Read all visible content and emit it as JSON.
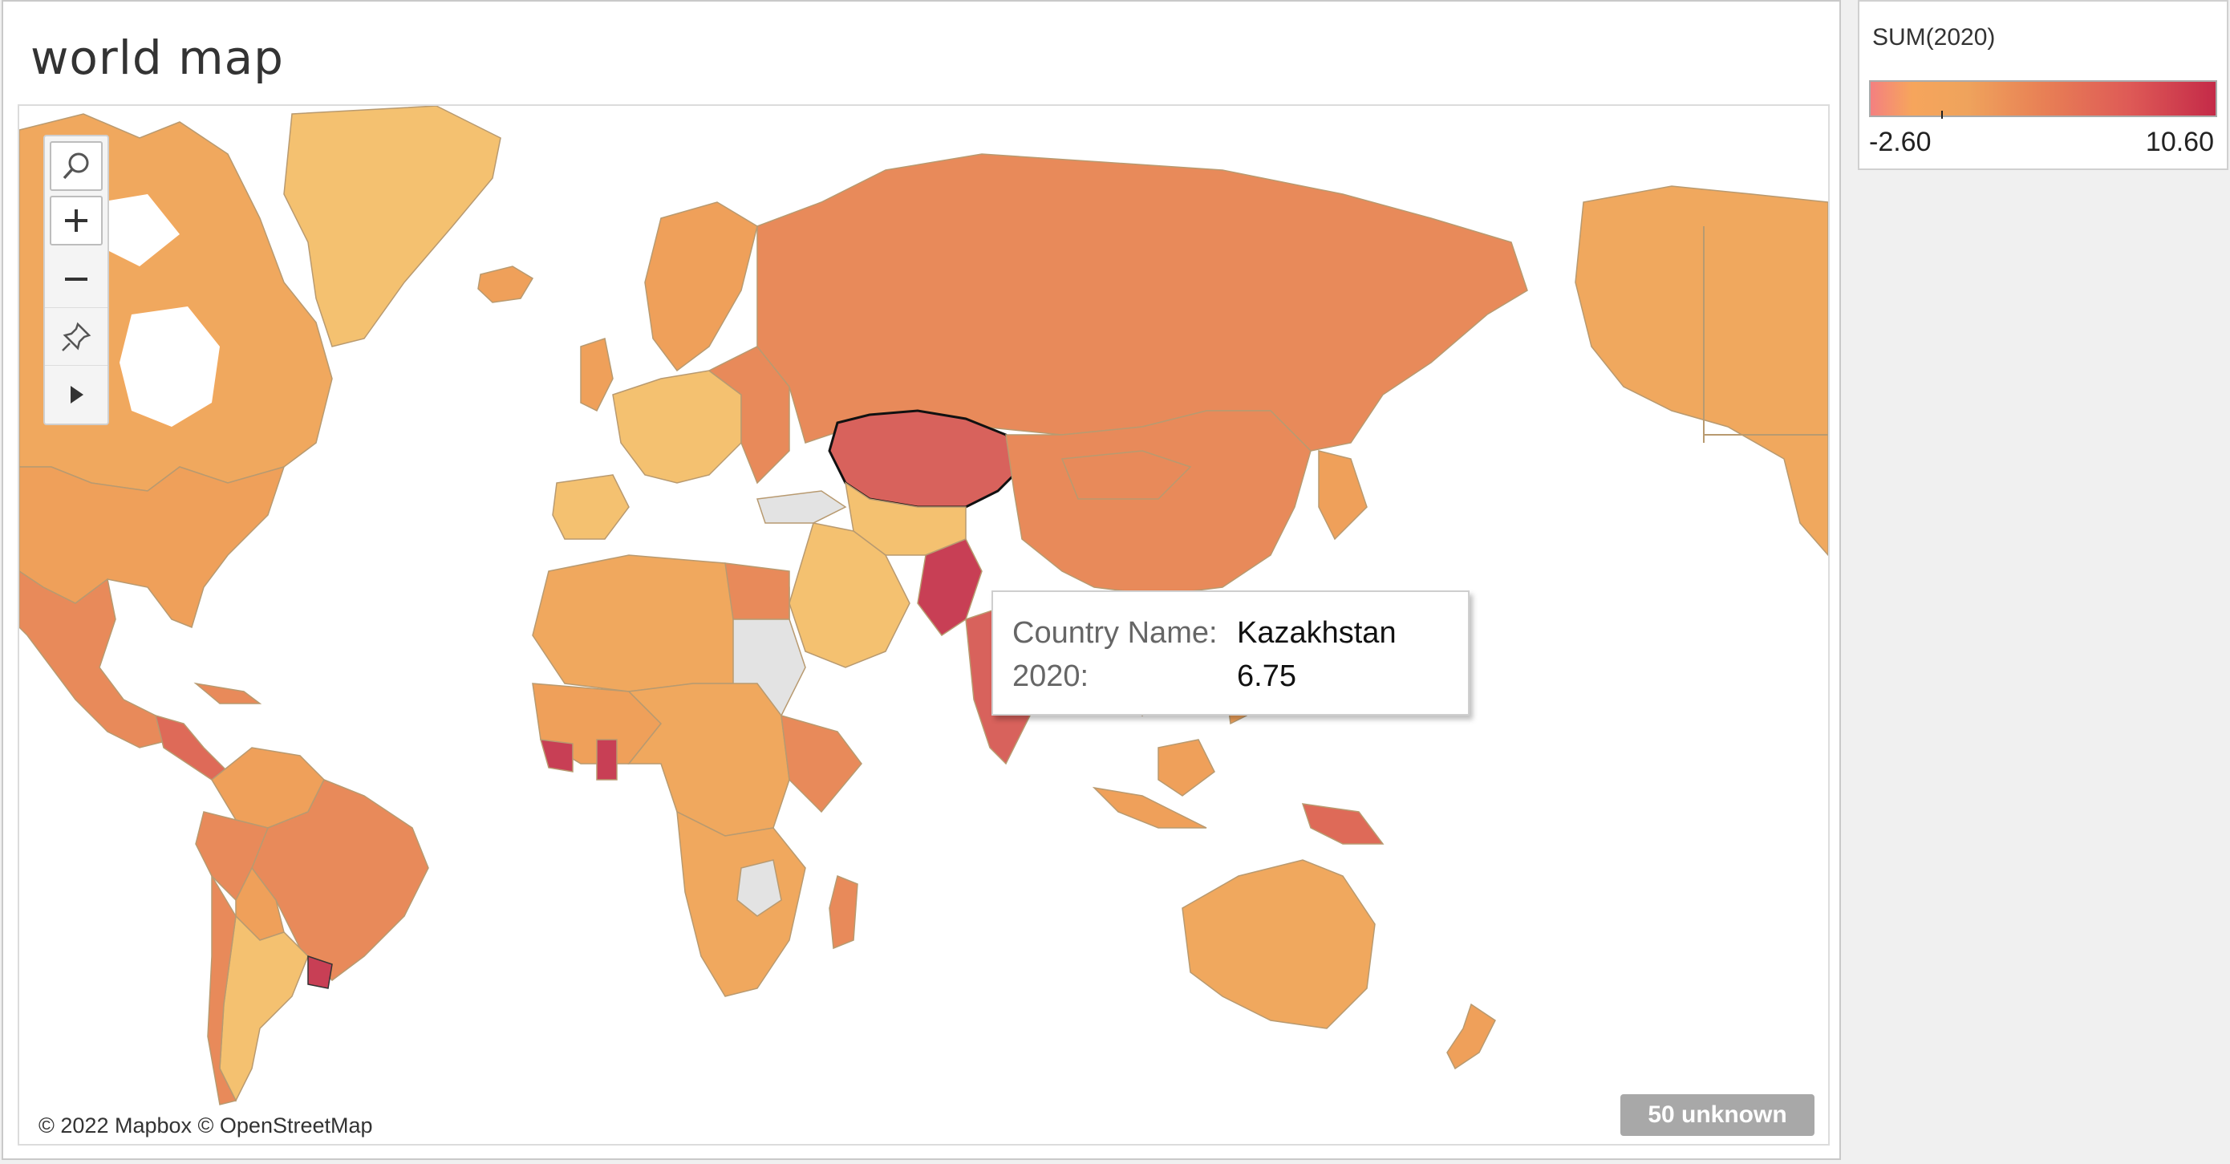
{
  "sheet": {
    "title": "world map"
  },
  "map": {
    "attribution": "© 2022 Mapbox © OpenStreetMap",
    "unknown_badge": "50 unknown",
    "highlighted_country": "Kazakhstan",
    "toolbar": [
      {
        "name": "search-icon",
        "glyph": "⌕"
      },
      {
        "name": "zoom-in-icon",
        "glyph": "+"
      },
      {
        "name": "zoom-out-icon",
        "glyph": "−"
      },
      {
        "name": "pin-icon",
        "glyph": "pin"
      },
      {
        "name": "expand-arrow-icon",
        "glyph": "▶"
      }
    ]
  },
  "tooltip": {
    "name_label": "Country Name:",
    "name_value": "Kazakhstan",
    "year_label": "2020:",
    "year_value": "6.75"
  },
  "legend": {
    "title": "SUM(2020)",
    "min_label": "-2.60",
    "max_label": "10.60",
    "colors": {
      "low": "#f48080",
      "mid_low": "#f6a55c",
      "mid": "#e88055",
      "high": "#c42a48"
    }
  },
  "colors": {
    "land_light": "#f4c170",
    "land_mid": "#efa05a",
    "land_dark": "#e88a5a",
    "land_red": "#d8625c",
    "land_deep": "#c83f55",
    "land_unknown": "#e3e3e3",
    "ocean": "#ffffff"
  }
}
